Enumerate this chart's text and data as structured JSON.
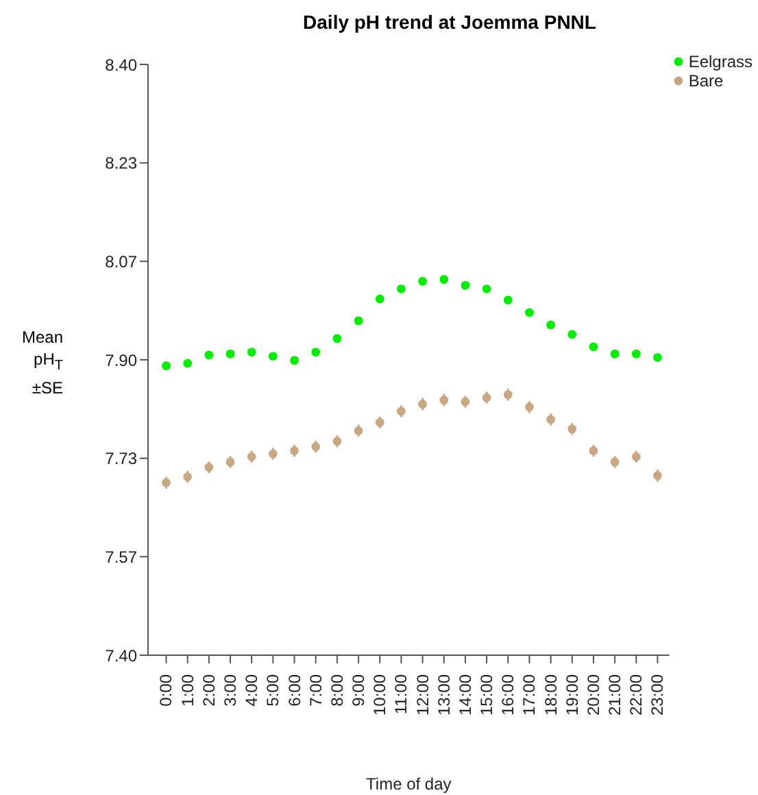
{
  "chart_data": {
    "type": "scatter",
    "title": "Daily pH trend at Joemma PNNL",
    "xlabel": "Time of day",
    "ylabel": "Mean pH$_{T}$ ±SE",
    "categories": [
      "0:00",
      "1:00",
      "2:00",
      "3:00",
      "4:00",
      "5:00",
      "6:00",
      "7:00",
      "8:00",
      "9:00",
      "10:00",
      "11:00",
      "12:00",
      "13:00",
      "14:00",
      "15:00",
      "16:00",
      "17:00",
      "18:00",
      "19:00",
      "20:00",
      "21:00",
      "22:00",
      "23:00"
    ],
    "series": [
      {
        "name": "Eelgrass",
        "color": "#00ee00",
        "values": [
          7.89,
          7.894,
          7.908,
          7.91,
          7.913,
          7.906,
          7.899,
          7.913,
          7.936,
          7.966,
          8.003,
          8.02,
          8.033,
          8.036,
          8.026,
          8.02,
          8.001,
          7.98,
          7.959,
          7.943,
          7.922,
          7.91,
          7.91,
          7.904
        ]
      },
      {
        "name": "Bare",
        "color": "#c8a882",
        "values": [
          7.692,
          7.702,
          7.718,
          7.727,
          7.736,
          7.741,
          7.746,
          7.753,
          7.762,
          7.78,
          7.794,
          7.813,
          7.825,
          7.832,
          7.829,
          7.836,
          7.841,
          7.82,
          7.799,
          7.783,
          7.746,
          7.727,
          7.736,
          7.704
        ],
        "errors": [
          0.01,
          0.01,
          0.01,
          0.01,
          0.01,
          0.01,
          0.01,
          0.01,
          0.01,
          0.01,
          0.01,
          0.01,
          0.01,
          0.01,
          0.01,
          0.01,
          0.01,
          0.01,
          0.01,
          0.01,
          0.01,
          0.01,
          0.01,
          0.01
        ]
      }
    ],
    "ylim": [
      7.4,
      8.4
    ],
    "yticks": [
      {
        "value": 7.4,
        "label": "7.40"
      },
      {
        "value": 7.5667,
        "label": "7.57"
      },
      {
        "value": 7.7333,
        "label": "7.73"
      },
      {
        "value": 7.9,
        "label": "7.90"
      },
      {
        "value": 8.0667,
        "label": "8.07"
      },
      {
        "value": 8.2333,
        "label": "8.23"
      },
      {
        "value": 8.4,
        "label": "8.40"
      }
    ],
    "grid": false,
    "legend": "top right",
    "marker": "circle"
  }
}
